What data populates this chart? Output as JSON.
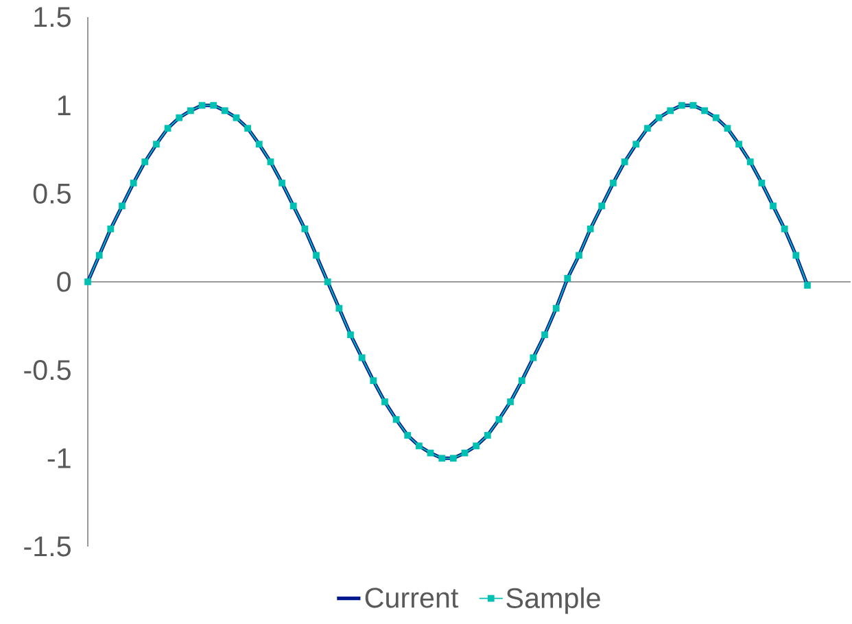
{
  "chart_data": {
    "type": "line",
    "categories": [
      null,
      null,
      null,
      null,
      null,
      null,
      null,
      null,
      null,
      null,
      null,
      null,
      null,
      null,
      null,
      null,
      null,
      null,
      null,
      null,
      null,
      null,
      null,
      null,
      null,
      null,
      null,
      null,
      null,
      null,
      null,
      null,
      null,
      null,
      null,
      null,
      null,
      null,
      null,
      null,
      null,
      null,
      null,
      null,
      null,
      null,
      null,
      null,
      null,
      null,
      null,
      null,
      null,
      null,
      null,
      null,
      null,
      null,
      null,
      null,
      null,
      null,
      null,
      null
    ],
    "series": [
      {
        "name": "Current",
        "color": "#00188f",
        "marker": "none",
        "values": [
          0,
          0.15,
          0.3,
          0.43,
          0.56,
          0.68,
          0.78,
          0.87,
          0.93,
          0.97,
          1.0,
          1.0,
          0.97,
          0.93,
          0.87,
          0.78,
          0.68,
          0.56,
          0.43,
          0.3,
          0.15,
          0,
          -0.15,
          -0.3,
          -0.43,
          -0.56,
          -0.68,
          -0.78,
          -0.87,
          -0.93,
          -0.97,
          -1.0,
          -1.0,
          -0.97,
          -0.93,
          -0.87,
          -0.78,
          -0.68,
          -0.56,
          -0.43,
          -0.3,
          -0.15,
          0.02,
          0.15,
          0.3,
          0.43,
          0.56,
          0.68,
          0.78,
          0.87,
          0.93,
          0.97,
          1.0,
          1.0,
          0.97,
          0.93,
          0.87,
          0.78,
          0.68,
          0.56,
          0.43,
          0.3,
          0.15,
          -0.02
        ]
      },
      {
        "name": "Sample",
        "color": "#00bfb3",
        "marker": "square",
        "values": [
          0,
          0.15,
          0.3,
          0.43,
          0.56,
          0.68,
          0.78,
          0.87,
          0.93,
          0.97,
          1.0,
          1.0,
          0.97,
          0.93,
          0.87,
          0.78,
          0.68,
          0.56,
          0.43,
          0.3,
          0.15,
          0,
          -0.15,
          -0.3,
          -0.43,
          -0.56,
          -0.68,
          -0.78,
          -0.87,
          -0.93,
          -0.97,
          -1.0,
          -1.0,
          -0.97,
          -0.93,
          -0.87,
          -0.78,
          -0.68,
          -0.56,
          -0.43,
          -0.3,
          -0.15,
          0.02,
          0.15,
          0.3,
          0.43,
          0.56,
          0.68,
          0.78,
          0.87,
          0.93,
          0.97,
          1.0,
          1.0,
          0.97,
          0.93,
          0.87,
          0.78,
          0.68,
          0.56,
          0.43,
          0.3,
          0.15,
          -0.02
        ]
      }
    ],
    "ylim": [
      -1.5,
      1.5
    ],
    "yticks": [
      -1.5,
      -1,
      -0.5,
      0,
      0.5,
      1,
      1.5
    ],
    "tick_labels": "y",
    "legend": "bottom"
  }
}
